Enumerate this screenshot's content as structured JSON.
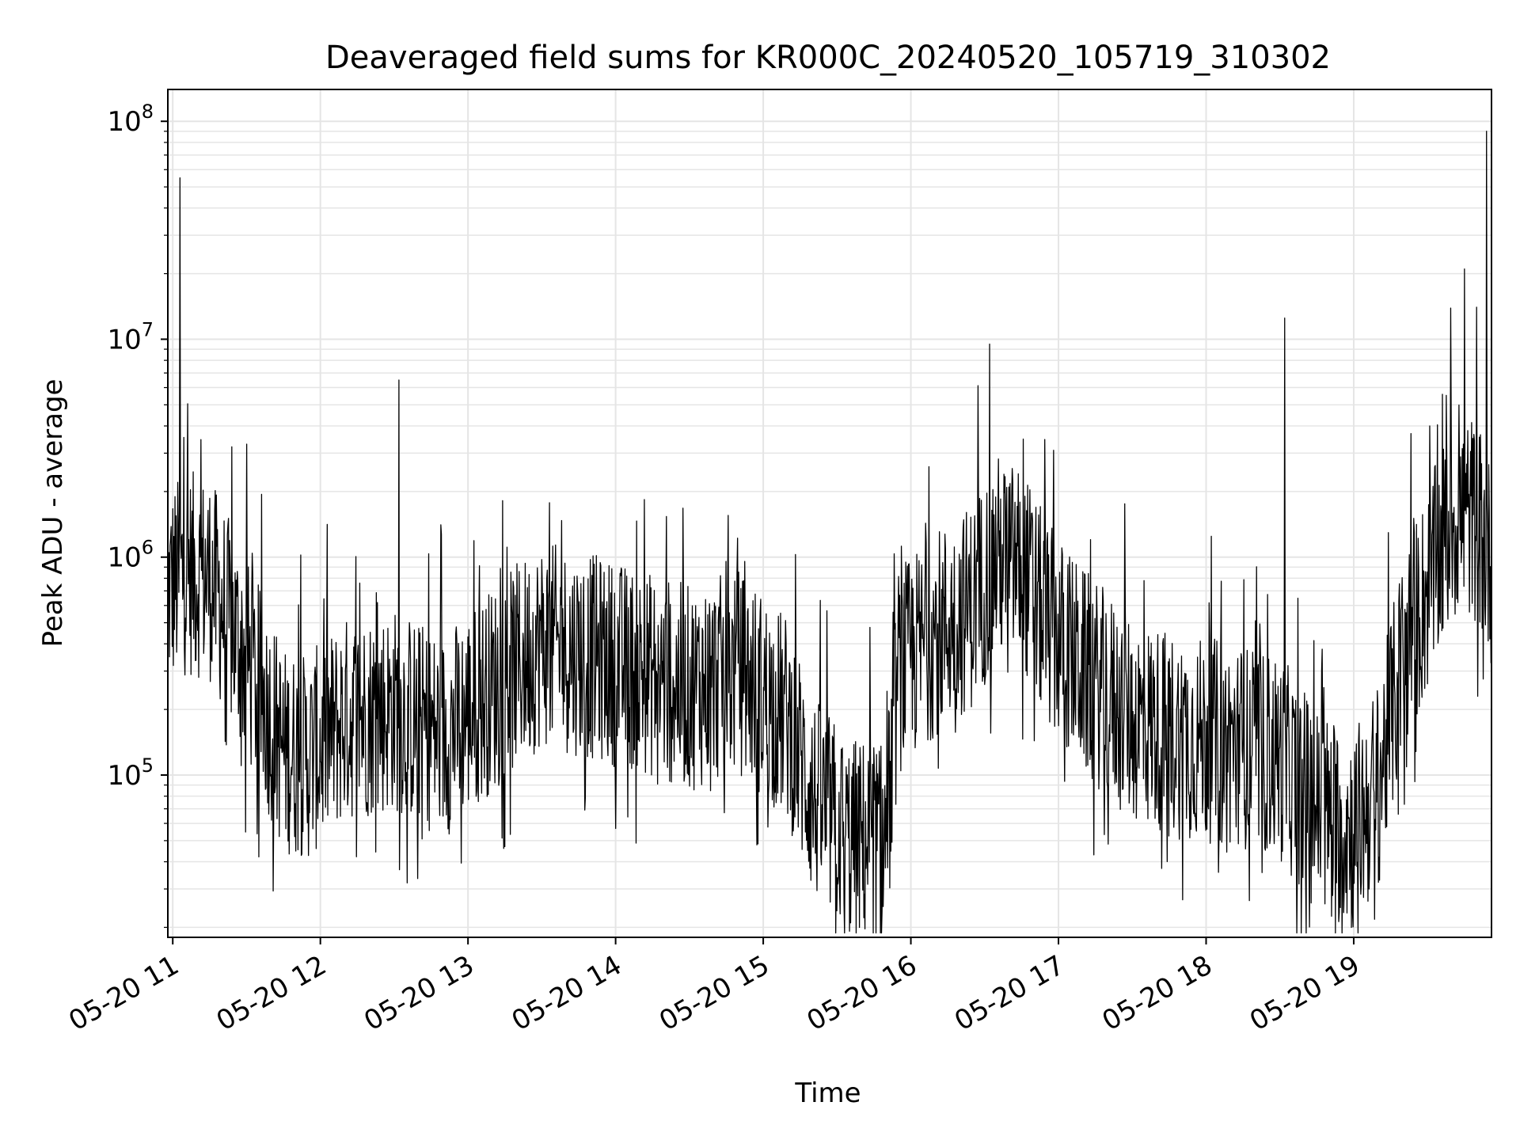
{
  "chart_data": {
    "type": "line",
    "title": "Deaveraged field sums for KR000C_20240520_105719_310302",
    "xlabel": "Time",
    "ylabel": "Peak ADU - average",
    "y_scale": "log",
    "ylim": [
      18000,
      140000000
    ],
    "xlim": [
      "2024-05-20T10:58:00",
      "2024-05-20T19:56:00"
    ],
    "grid": true,
    "line_color": "#000000",
    "grid_color": "#e5e5e5",
    "x_ticks": [
      {
        "label": "05-20 11",
        "value": "2024-05-20T11:00:00"
      },
      {
        "label": "05-20 12",
        "value": "2024-05-20T12:00:00"
      },
      {
        "label": "05-20 13",
        "value": "2024-05-20T13:00:00"
      },
      {
        "label": "05-20 14",
        "value": "2024-05-20T14:00:00"
      },
      {
        "label": "05-20 15",
        "value": "2024-05-20T15:00:00"
      },
      {
        "label": "05-20 16",
        "value": "2024-05-20T16:00:00"
      },
      {
        "label": "05-20 17",
        "value": "2024-05-20T17:00:00"
      },
      {
        "label": "05-20 18",
        "value": "2024-05-20T18:00:00"
      },
      {
        "label": "05-20 19",
        "value": "2024-05-20T19:00:00"
      }
    ],
    "y_ticks": [
      {
        "base": "10",
        "exp": "5",
        "value": 100000
      },
      {
        "base": "10",
        "exp": "6",
        "value": 1000000
      },
      {
        "base": "10",
        "exp": "7",
        "value": 10000000
      },
      {
        "base": "10",
        "exp": "8",
        "value": 100000000
      }
    ],
    "series": [
      {
        "baseline": [
          {
            "x": "2024-05-20T10:58:00",
            "y": 700000
          },
          {
            "x": "2024-05-20T11:05:00",
            "y": 850000
          },
          {
            "x": "2024-05-20T11:15:00",
            "y": 800000
          },
          {
            "x": "2024-05-20T11:25:00",
            "y": 450000
          },
          {
            "x": "2024-05-20T11:35:00",
            "y": 250000
          },
          {
            "x": "2024-05-20T11:45:00",
            "y": 130000
          },
          {
            "x": "2024-05-20T11:55:00",
            "y": 120000
          },
          {
            "x": "2024-05-20T12:10:00",
            "y": 180000
          },
          {
            "x": "2024-05-20T12:30:00",
            "y": 200000
          },
          {
            "x": "2024-05-20T12:50:00",
            "y": 150000
          },
          {
            "x": "2024-05-20T13:10:00",
            "y": 250000
          },
          {
            "x": "2024-05-20T13:30:00",
            "y": 400000
          },
          {
            "x": "2024-05-20T13:50:00",
            "y": 350000
          },
          {
            "x": "2024-05-20T14:10:00",
            "y": 300000
          },
          {
            "x": "2024-05-20T14:30:00",
            "y": 250000
          },
          {
            "x": "2024-05-20T14:50:00",
            "y": 300000
          },
          {
            "x": "2024-05-20T15:10:00",
            "y": 180000
          },
          {
            "x": "2024-05-20T15:20:00",
            "y": 80000
          },
          {
            "x": "2024-05-20T15:35:00",
            "y": 50000
          },
          {
            "x": "2024-05-20T15:50:00",
            "y": 50000
          },
          {
            "x": "2024-05-20T15:55:00",
            "y": 300000
          },
          {
            "x": "2024-05-20T16:10:00",
            "y": 450000
          },
          {
            "x": "2024-05-20T16:25:00",
            "y": 600000
          },
          {
            "x": "2024-05-20T16:35:00",
            "y": 1000000
          },
          {
            "x": "2024-05-20T16:45:00",
            "y": 900000
          },
          {
            "x": "2024-05-20T16:55:00",
            "y": 500000
          },
          {
            "x": "2024-05-20T17:10:00",
            "y": 300000
          },
          {
            "x": "2024-05-20T17:30:00",
            "y": 180000
          },
          {
            "x": "2024-05-20T17:50:00",
            "y": 150000
          },
          {
            "x": "2024-05-20T18:10:00",
            "y": 140000
          },
          {
            "x": "2024-05-20T18:30:00",
            "y": 120000
          },
          {
            "x": "2024-05-20T18:45:00",
            "y": 70000
          },
          {
            "x": "2024-05-20T19:00:00",
            "y": 55000
          },
          {
            "x": "2024-05-20T19:10:00",
            "y": 90000
          },
          {
            "x": "2024-05-20T19:20:00",
            "y": 350000
          },
          {
            "x": "2024-05-20T19:30:00",
            "y": 700000
          },
          {
            "x": "2024-05-20T19:40:00",
            "y": 1500000
          },
          {
            "x": "2024-05-20T19:50:00",
            "y": 1500000
          },
          {
            "x": "2024-05-20T19:56:00",
            "y": 900000
          }
        ],
        "spikes": [
          {
            "x": "2024-05-20T11:03:00",
            "y": 55000000
          },
          {
            "x": "2024-05-20T11:30:00",
            "y": 3300000
          },
          {
            "x": "2024-05-20T12:32:00",
            "y": 6500000
          },
          {
            "x": "2024-05-20T16:32:00",
            "y": 9500000
          },
          {
            "x": "2024-05-20T18:32:00",
            "y": 12500000
          },
          {
            "x": "2024-05-20T19:45:00",
            "y": 21000000
          },
          {
            "x": "2024-05-20T19:54:00",
            "y": 90000000
          }
        ]
      }
    ]
  }
}
